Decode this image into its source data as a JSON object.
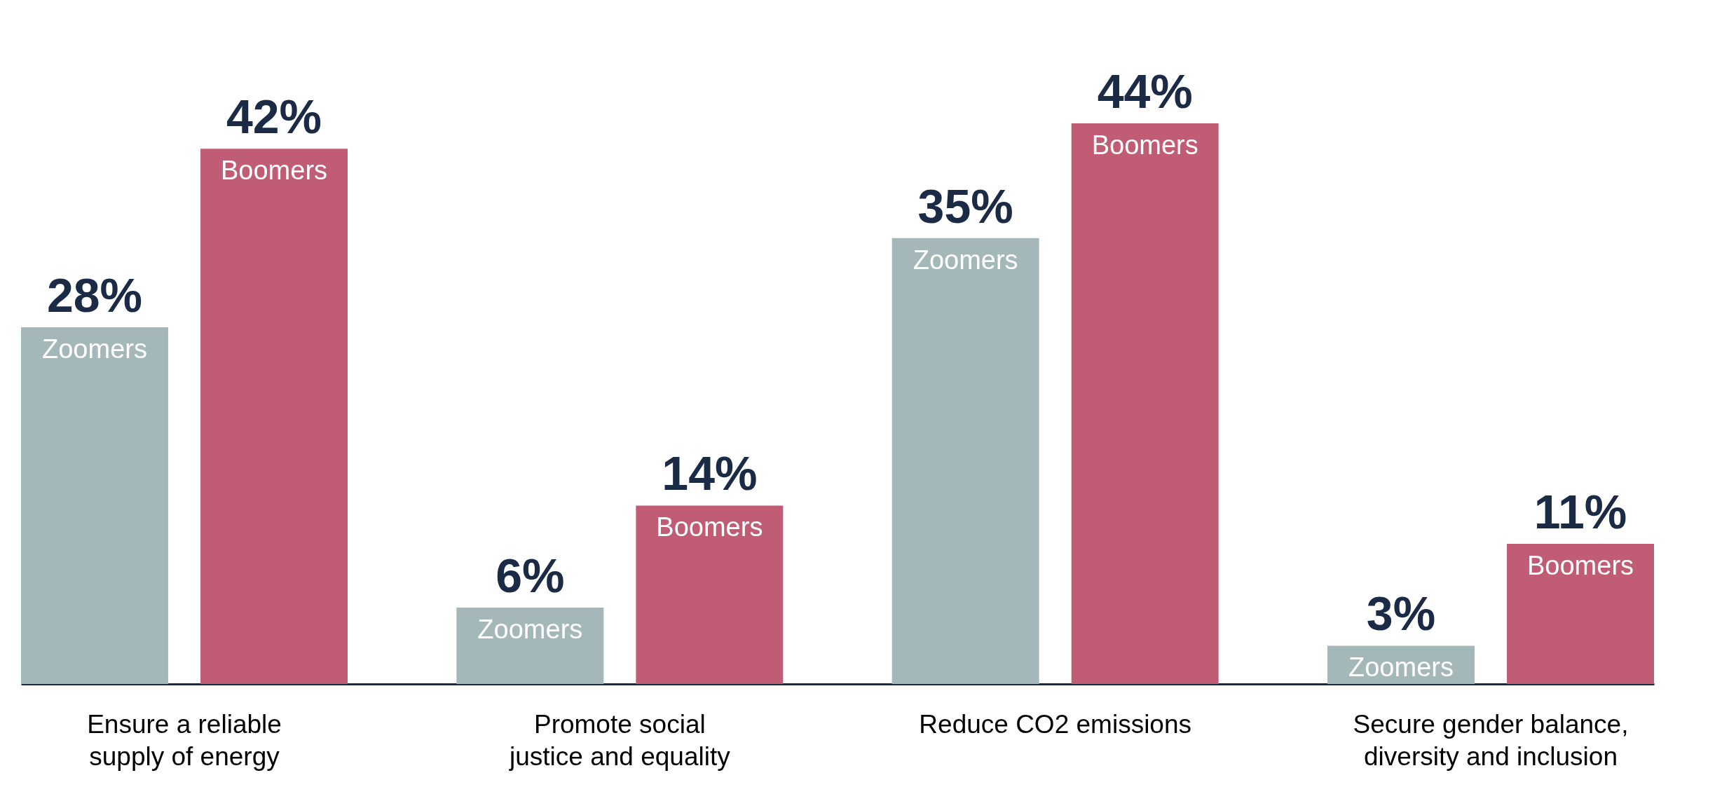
{
  "chart_data": {
    "type": "bar",
    "categories": [
      "Ensure a reliable supply of energy",
      "Promote social justice and equality",
      "Reduce CO2 emissions",
      "Secure gender balance, diversity and inclusion"
    ],
    "series": [
      {
        "name": "Zoomers",
        "color": "#a5b8b9",
        "values": [
          28,
          6,
          35,
          3
        ],
        "value_labels": [
          "28%",
          "6%",
          "35%",
          "3%"
        ]
      },
      {
        "name": "Boomers",
        "color": "#c05c74",
        "values": [
          42,
          14,
          44,
          11
        ],
        "value_labels": [
          "42%",
          "14%",
          "44%",
          "11%"
        ]
      }
    ],
    "legend": false
  }
}
